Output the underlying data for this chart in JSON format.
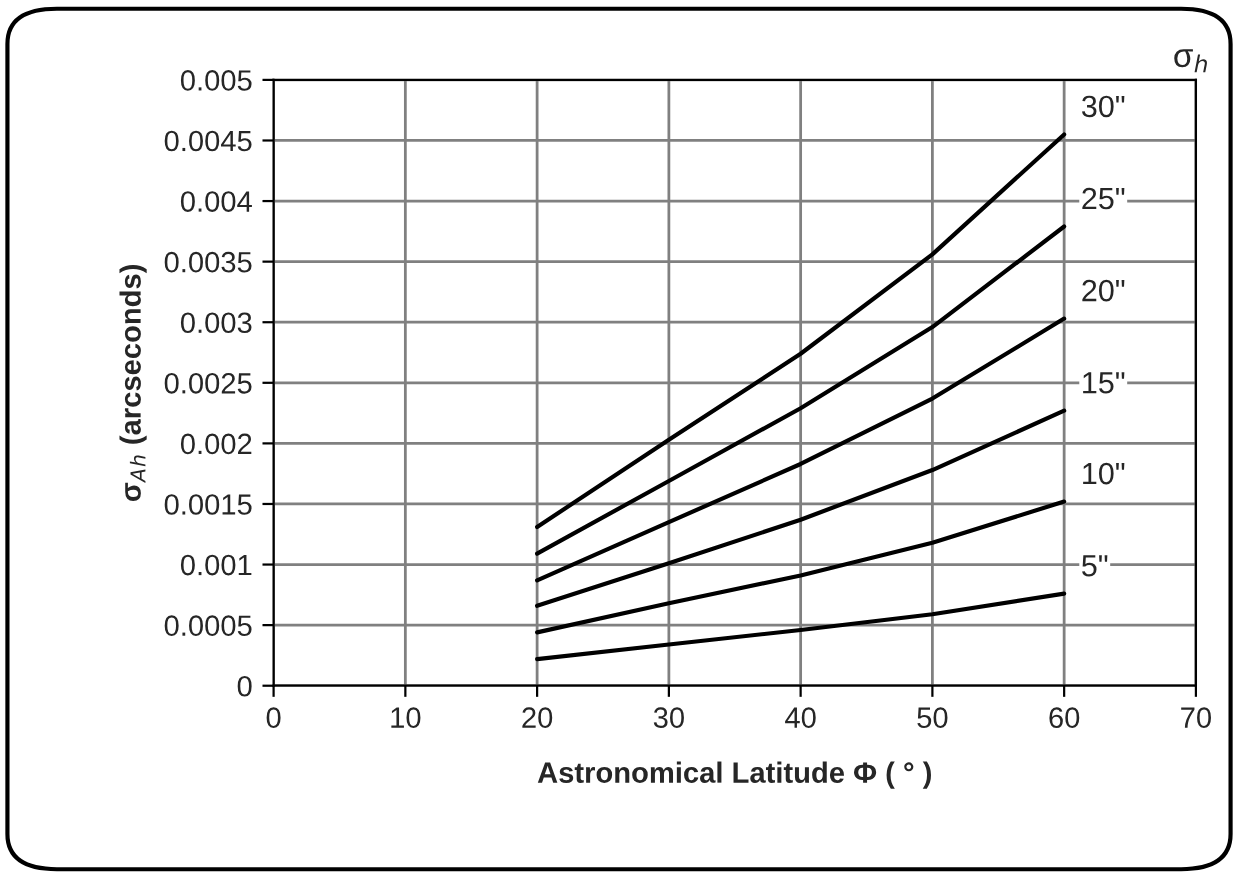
{
  "chart_data": {
    "type": "line",
    "xlabel": "Astronomical Latitude Φ ( ° )",
    "ylabel": "σ$_{A}$$_{h}$ (arcseconds)",
    "annotations": [
      "σ$_{h}$"
    ],
    "x": [
      20,
      30,
      40,
      50,
      60
    ],
    "series": [
      {
        "name": "5\"",
        "color": "#000000",
        "values": [
          0.00022,
          0.00034,
          0.00046,
          0.00059,
          0.00076
        ]
      },
      {
        "name": "10\"",
        "color": "#000000",
        "values": [
          0.00044,
          0.00068,
          0.00091,
          0.00118,
          0.00152
        ]
      },
      {
        "name": "15\"",
        "color": "#000000",
        "values": [
          0.00066,
          0.00101,
          0.00137,
          0.00178,
          0.00227
        ]
      },
      {
        "name": "20\"",
        "color": "#000000",
        "values": [
          0.00087,
          0.00135,
          0.00183,
          0.00237,
          0.00303
        ]
      },
      {
        "name": "25\"",
        "color": "#000000",
        "values": [
          0.00109,
          0.00169,
          0.00229,
          0.00296,
          0.00379
        ]
      },
      {
        "name": "30\"",
        "color": "#000000",
        "values": [
          0.00131,
          0.00203,
          0.00274,
          0.00356,
          0.00455
        ]
      }
    ],
    "xlim": [
      0,
      70
    ],
    "xticks": [
      0,
      10,
      20,
      30,
      40,
      50,
      60,
      70
    ],
    "ylim": [
      0,
      0.005
    ],
    "yticks": [
      0,
      0.0005,
      0.001,
      0.0015,
      0.002,
      0.0025,
      0.003,
      0.0035,
      0.004,
      0.0045,
      0.005
    ],
    "grid": true,
    "legend": false,
    "marker": "none",
    "line_style": "solid"
  }
}
